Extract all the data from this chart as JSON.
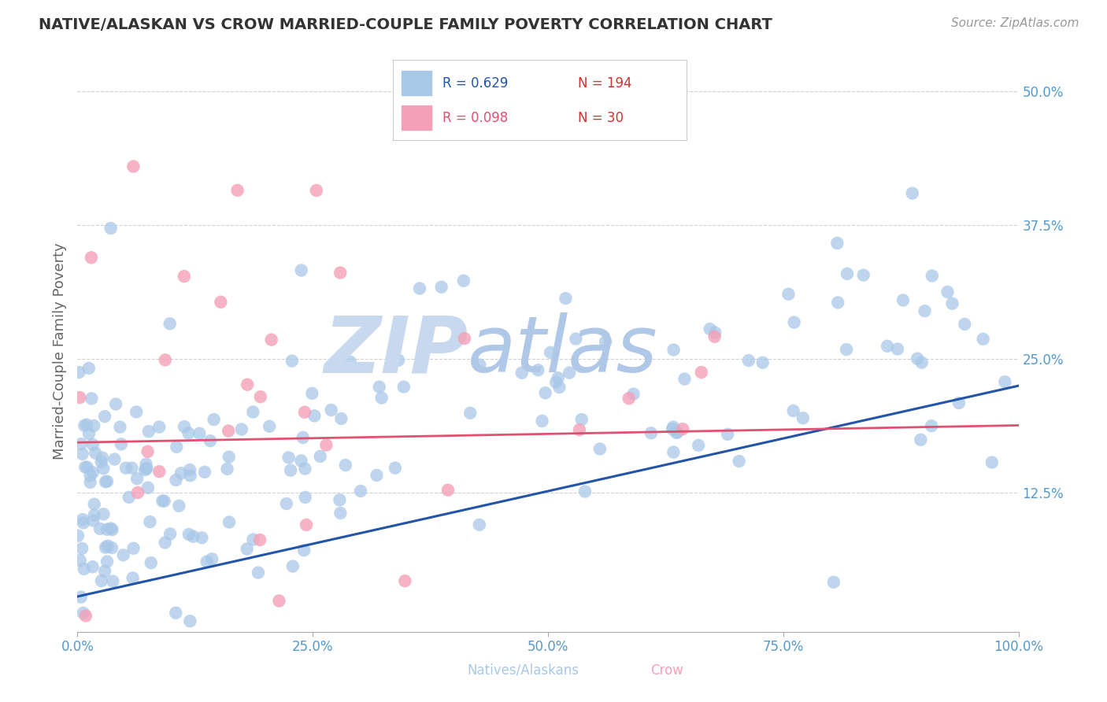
{
  "title": "NATIVE/ALASKAN VS CROW MARRIED-COUPLE FAMILY POVERTY CORRELATION CHART",
  "source": "Source: ZipAtlas.com",
  "ylabel": "Married-Couple Family Poverty",
  "xlim": [
    0.0,
    1.0
  ],
  "ylim": [
    -0.005,
    0.52
  ],
  "xticks": [
    0.0,
    0.25,
    0.5,
    0.75,
    1.0
  ],
  "xticklabels": [
    "0.0%",
    "25.0%",
    "50.0%",
    "75.0%",
    "100.0%"
  ],
  "yticks": [
    0.125,
    0.25,
    0.375,
    0.5
  ],
  "yticklabels": [
    "12.5%",
    "25.0%",
    "37.5%",
    "50.0%"
  ],
  "blue_R": 0.629,
  "blue_N": 194,
  "pink_R": 0.098,
  "pink_N": 30,
  "blue_color": "#a8c8e8",
  "pink_color": "#f4a0b8",
  "blue_line_color": "#2255aa",
  "pink_line_color": "#e05070",
  "title_color": "#333333",
  "axis_color": "#5599cc",
  "grid_color": "#cccccc",
  "watermark_zip_color": "#c8d8ee",
  "watermark_atlas_color": "#b0c8e8",
  "figsize": [
    14.06,
    8.92
  ],
  "dpi": 100,
  "blue_trend_x0": 0.0,
  "blue_trend_x1": 1.0,
  "blue_trend_y0": 0.028,
  "blue_trend_y1": 0.225,
  "pink_trend_x0": 0.0,
  "pink_trend_x1": 1.0,
  "pink_trend_y0": 0.172,
  "pink_trend_y1": 0.188,
  "legend_blue_label": "R = 0.629   N = 194",
  "legend_pink_label": "R = 0.098   N =  30",
  "bottom_label_blue": "Natives/Alaskans",
  "bottom_label_pink": "Crow"
}
